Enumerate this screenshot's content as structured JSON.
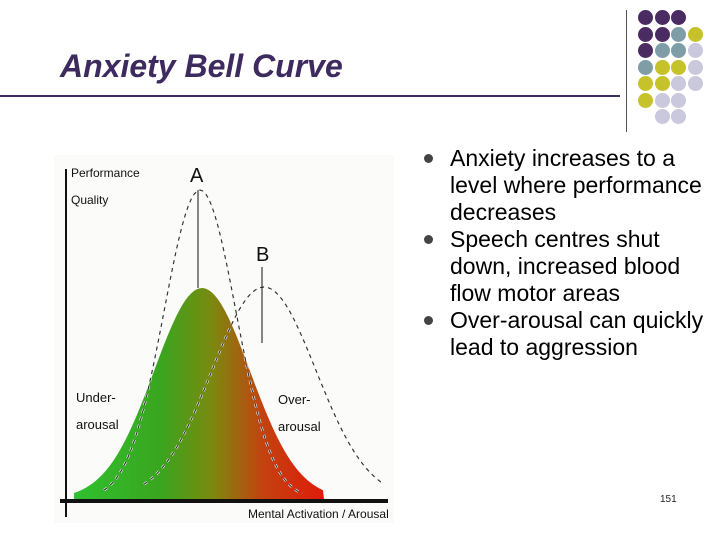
{
  "slide": {
    "title": "Anxiety Bell Curve",
    "page_number": "151",
    "bullets": [
      "Anxiety increases to a level where performance decreases",
      "Speech centres shut down, increased blood flow motor areas",
      "Over-arousal can quickly lead to aggression"
    ]
  },
  "diagram": {
    "y_axis_label_1": "Performance",
    "y_axis_label_2": "Quality",
    "peak_a": "A",
    "peak_b": "B",
    "under_label_1": "Under-",
    "under_label_2": "arousal",
    "over_label_1": "Over-",
    "over_label_2": "arousal",
    "x_axis_label": "Mental Activation / Arousal"
  },
  "colors": {
    "title": "#3d2a5e",
    "curve_fill_left": "#2fc12f",
    "curve_fill_right": "#e01a0a",
    "decor_purple": "#4a2c63",
    "decor_gray": "#7f9da6",
    "decor_yellow": "#c5c22a",
    "decor_lavender": "#c9c8dc"
  },
  "decor_grid": [
    [
      "purple",
      "purple",
      "purple",
      null
    ],
    [
      "purple",
      "purple",
      "gray",
      "yellow"
    ],
    [
      "purple",
      "gray",
      "gray",
      "lavender"
    ],
    [
      "gray",
      "yellow",
      "yellow",
      "lavender"
    ],
    [
      "yellow",
      "yellow",
      "lavender",
      "lavender"
    ],
    [
      "yellow",
      "lavender",
      "lavender",
      null
    ],
    [
      null,
      "lavender",
      "lavender",
      null
    ]
  ]
}
